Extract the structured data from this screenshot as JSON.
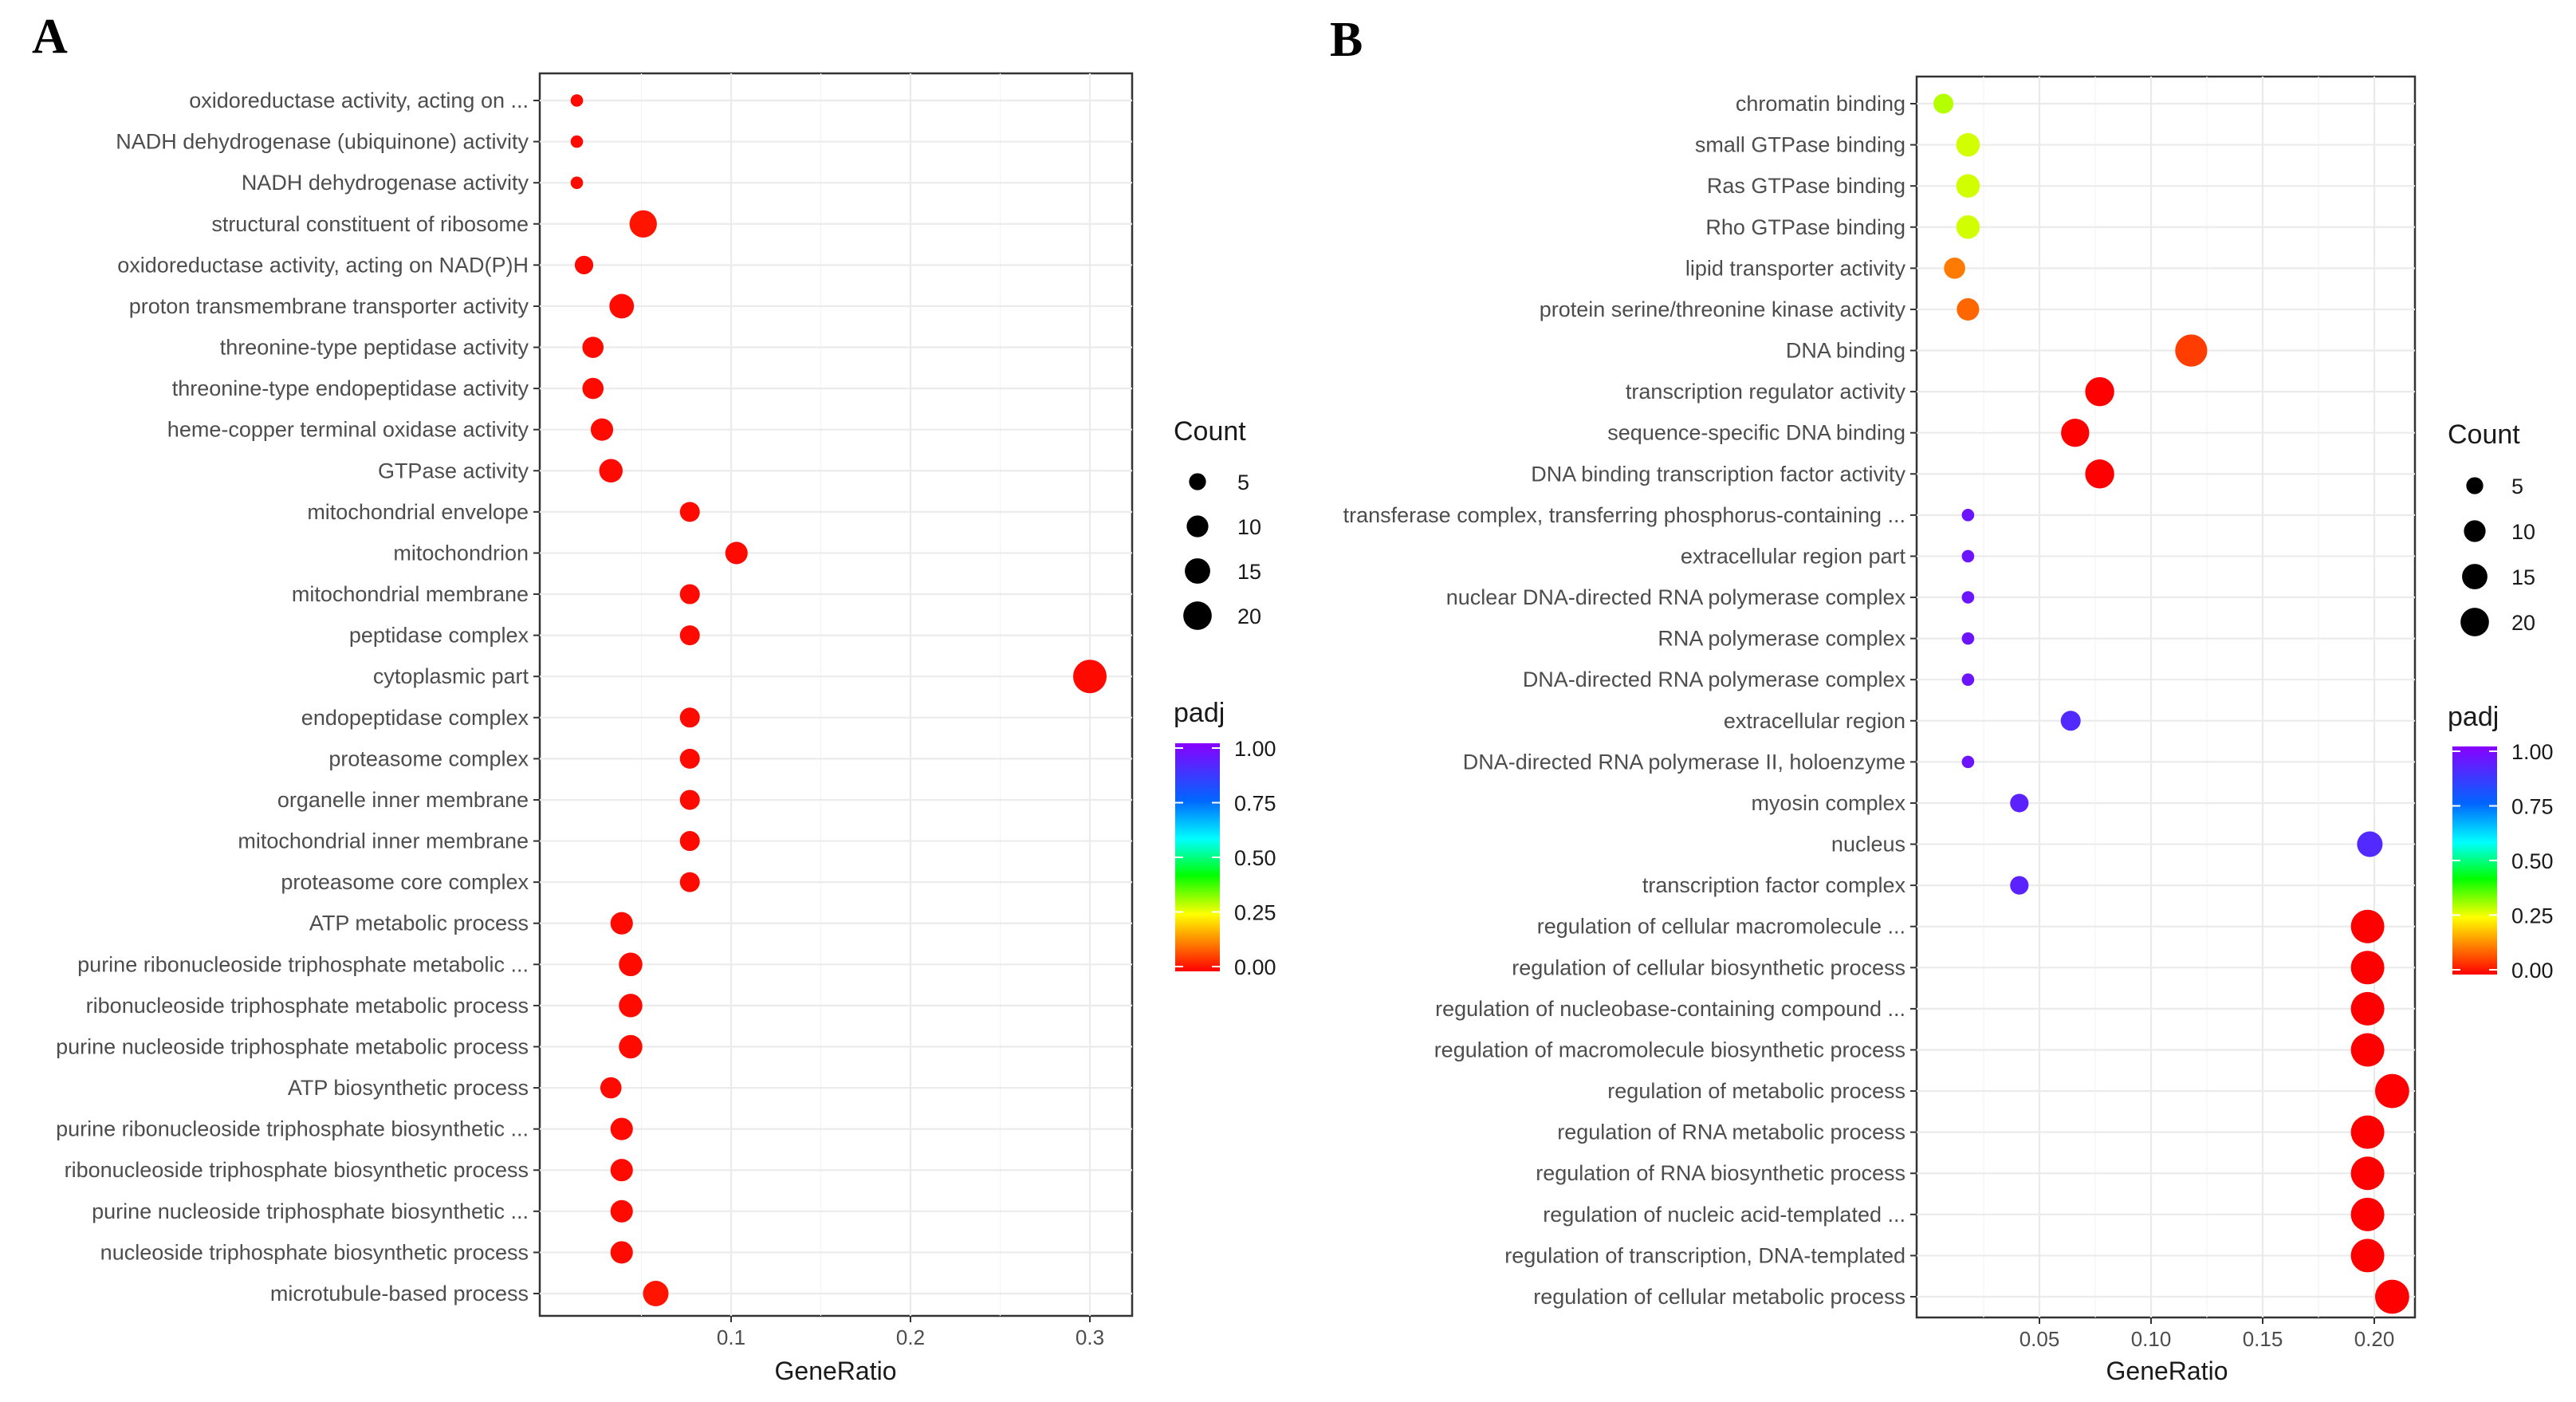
{
  "chart_data": [
    {
      "type": "scatter",
      "panel_label": "A",
      "xlabel": "GeneRatio",
      "ylabel": "",
      "xlim": [
        0.0,
        0.32
      ],
      "x_ticks": [
        0.1,
        0.2,
        0.3
      ],
      "x_tick_labels": [
        "0.1",
        "0.2",
        "0.3"
      ],
      "grid": true,
      "size_legend": {
        "title": "Count",
        "values": [
          5,
          10,
          15,
          20
        ],
        "labels": [
          "5",
          "10",
          "15",
          "20"
        ]
      },
      "color_legend": {
        "title": "padj",
        "range": [
          0.0,
          1.0
        ],
        "ticks": [
          "1.00",
          "0.75",
          "0.50",
          "0.25",
          "0.00"
        ]
      },
      "points": [
        {
          "term": "oxidoreductase activity, acting on ...",
          "x": 0.014,
          "count": 1,
          "padj": 0.01
        },
        {
          "term": "NADH dehydrogenase (ubiquinone) activity",
          "x": 0.014,
          "count": 1,
          "padj": 0.01
        },
        {
          "term": "NADH dehydrogenase activity",
          "x": 0.014,
          "count": 1,
          "padj": 0.01
        },
        {
          "term": "structural constituent of ribosome",
          "x": 0.051,
          "count": 12,
          "padj": 0.02
        },
        {
          "term": "oxidoreductase activity, acting on NAD(P)H",
          "x": 0.018,
          "count": 4,
          "padj": 0.01
        },
        {
          "term": "proton transmembrane transporter activity",
          "x": 0.039,
          "count": 9,
          "padj": 0.01
        },
        {
          "term": "threonine-type peptidase activity",
          "x": 0.023,
          "count": 6,
          "padj": 0.01
        },
        {
          "term": "threonine-type endopeptidase activity",
          "x": 0.023,
          "count": 6,
          "padj": 0.01
        },
        {
          "term": "heme-copper terminal oxidase activity",
          "x": 0.028,
          "count": 7,
          "padj": 0.01
        },
        {
          "term": "GTPase activity",
          "x": 0.033,
          "count": 8,
          "padj": 0.01
        },
        {
          "term": "mitochondrial envelope",
          "x": 0.077,
          "count": 5,
          "padj": 0.01
        },
        {
          "term": "mitochondrion",
          "x": 0.103,
          "count": 7,
          "padj": 0.01
        },
        {
          "term": "mitochondrial membrane",
          "x": 0.077,
          "count": 5,
          "padj": 0.01
        },
        {
          "term": "peptidase complex",
          "x": 0.077,
          "count": 5,
          "padj": 0.01
        },
        {
          "term": "cytoplasmic part",
          "x": 0.3,
          "count": 20,
          "padj": 0.01
        },
        {
          "term": "endopeptidase complex",
          "x": 0.077,
          "count": 5,
          "padj": 0.01
        },
        {
          "term": "proteasome complex",
          "x": 0.077,
          "count": 5,
          "padj": 0.01
        },
        {
          "term": "organelle inner membrane",
          "x": 0.077,
          "count": 5,
          "padj": 0.01
        },
        {
          "term": "mitochondrial inner membrane",
          "x": 0.077,
          "count": 5,
          "padj": 0.01
        },
        {
          "term": "proteasome core complex",
          "x": 0.077,
          "count": 5,
          "padj": 0.01
        },
        {
          "term": "ATP metabolic process",
          "x": 0.039,
          "count": 7,
          "padj": 0.01
        },
        {
          "term": "purine ribonucleoside triphosphate metabolic ...",
          "x": 0.044,
          "count": 8,
          "padj": 0.01
        },
        {
          "term": "ribonucleoside triphosphate metabolic process",
          "x": 0.044,
          "count": 8,
          "padj": 0.01
        },
        {
          "term": "purine nucleoside triphosphate metabolic process",
          "x": 0.044,
          "count": 8,
          "padj": 0.01
        },
        {
          "term": "ATP biosynthetic process",
          "x": 0.033,
          "count": 6,
          "padj": 0.01
        },
        {
          "term": "purine ribonucleoside triphosphate biosynthetic ...",
          "x": 0.039,
          "count": 7,
          "padj": 0.01
        },
        {
          "term": "ribonucleoside triphosphate biosynthetic process",
          "x": 0.039,
          "count": 7,
          "padj": 0.01
        },
        {
          "term": "purine nucleoside triphosphate biosynthetic ...",
          "x": 0.039,
          "count": 7,
          "padj": 0.01
        },
        {
          "term": "nucleoside triphosphate biosynthetic process",
          "x": 0.039,
          "count": 7,
          "padj": 0.01
        },
        {
          "term": "microtubule-based process",
          "x": 0.058,
          "count": 10,
          "padj": 0.02
        }
      ]
    },
    {
      "type": "scatter",
      "panel_label": "B",
      "xlabel": "GeneRatio",
      "ylabel": "",
      "xlim": [
        0.0,
        0.215
      ],
      "x_ticks": [
        0.05,
        0.1,
        0.15,
        0.2
      ],
      "x_tick_labels": [
        "0.05",
        "0.10",
        "0.15",
        "0.20"
      ],
      "grid": true,
      "size_legend": {
        "title": "Count",
        "values": [
          5,
          10,
          15,
          20
        ],
        "labels": [
          "5",
          "10",
          "15",
          "20"
        ]
      },
      "color_legend": {
        "title": "padj",
        "range": [
          0.0,
          1.0
        ],
        "ticks": [
          "1.00",
          "0.75",
          "0.50",
          "0.25",
          "0.00"
        ]
      },
      "points": [
        {
          "term": "chromatin binding",
          "x": 0.007,
          "count": 5,
          "padj": 0.3
        },
        {
          "term": "small GTPase binding",
          "x": 0.018,
          "count": 8,
          "padj": 0.28
        },
        {
          "term": "Ras GTPase binding",
          "x": 0.018,
          "count": 8,
          "padj": 0.28
        },
        {
          "term": "Rho GTPase binding",
          "x": 0.018,
          "count": 8,
          "padj": 0.28
        },
        {
          "term": "lipid transporter activity",
          "x": 0.012,
          "count": 6,
          "padj": 0.12
        },
        {
          "term": "protein serine/threonine kinase activity",
          "x": 0.018,
          "count": 7,
          "padj": 0.1
        },
        {
          "term": "DNA binding",
          "x": 0.118,
          "count": 18,
          "padj": 0.06
        },
        {
          "term": "transcription regulator activity",
          "x": 0.077,
          "count": 14,
          "padj": 0.0
        },
        {
          "term": "sequence-specific DNA binding",
          "x": 0.066,
          "count": 13,
          "padj": 0.0
        },
        {
          "term": "DNA binding transcription factor activity",
          "x": 0.077,
          "count": 14,
          "padj": 0.0
        },
        {
          "term": "transferase complex, transferring phosphorus-containing ...",
          "x": 0.018,
          "count": 1,
          "padj": 0.95
        },
        {
          "term": "extracellular region part",
          "x": 0.018,
          "count": 1,
          "padj": 0.95
        },
        {
          "term": "nuclear DNA-directed RNA polymerase complex",
          "x": 0.018,
          "count": 1,
          "padj": 0.95
        },
        {
          "term": "RNA polymerase complex",
          "x": 0.018,
          "count": 1,
          "padj": 0.95
        },
        {
          "term": "DNA-directed RNA polymerase complex",
          "x": 0.018,
          "count": 1,
          "padj": 0.95
        },
        {
          "term": "extracellular region",
          "x": 0.064,
          "count": 5,
          "padj": 0.9
        },
        {
          "term": "DNA-directed RNA polymerase II, holoenzyme",
          "x": 0.018,
          "count": 1,
          "padj": 0.95
        },
        {
          "term": "myosin complex",
          "x": 0.041,
          "count": 4,
          "padj": 0.92
        },
        {
          "term": "nucleus",
          "x": 0.198,
          "count": 10,
          "padj": 0.9
        },
        {
          "term": "transcription factor complex",
          "x": 0.041,
          "count": 4,
          "padj": 0.92
        },
        {
          "term": "regulation of cellular macromolecule ...",
          "x": 0.197,
          "count": 20,
          "padj": 0.0
        },
        {
          "term": "regulation of cellular biosynthetic process",
          "x": 0.197,
          "count": 20,
          "padj": 0.0
        },
        {
          "term": "regulation of nucleobase-containing compound ...",
          "x": 0.197,
          "count": 20,
          "padj": 0.0
        },
        {
          "term": "regulation of macromolecule biosynthetic process",
          "x": 0.197,
          "count": 20,
          "padj": 0.0
        },
        {
          "term": "regulation of metabolic process",
          "x": 0.208,
          "count": 21,
          "padj": 0.0
        },
        {
          "term": "regulation of RNA metabolic process",
          "x": 0.197,
          "count": 20,
          "padj": 0.0
        },
        {
          "term": "regulation of RNA biosynthetic process",
          "x": 0.197,
          "count": 20,
          "padj": 0.0
        },
        {
          "term": "regulation of nucleic acid-templated ...",
          "x": 0.197,
          "count": 20,
          "padj": 0.0
        },
        {
          "term": "regulation of transcription, DNA-templated",
          "x": 0.197,
          "count": 20,
          "padj": 0.0
        },
        {
          "term": "regulation of cellular metabolic process",
          "x": 0.208,
          "count": 21,
          "padj": 0.0
        }
      ]
    }
  ]
}
